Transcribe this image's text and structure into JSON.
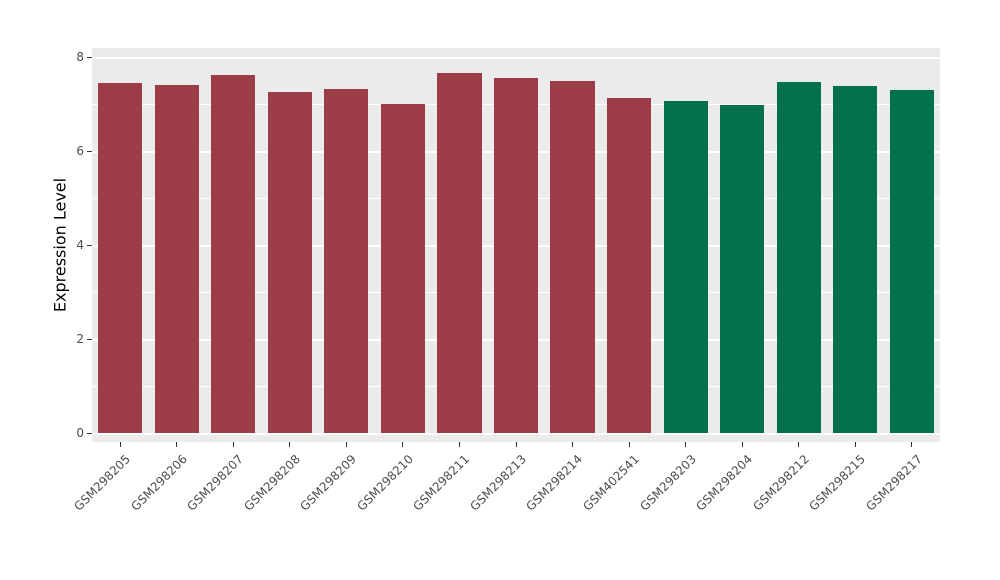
{
  "chart_data": {
    "type": "bar",
    "title": "",
    "xlabel": "",
    "ylabel": "Expression Level",
    "categories": [
      "GSM298205",
      "GSM298206",
      "GSM298207",
      "GSM298208",
      "GSM298209",
      "GSM298210",
      "GSM298211",
      "GSM298213",
      "GSM298214",
      "GSM402541",
      "GSM298203",
      "GSM298204",
      "GSM298212",
      "GSM298215",
      "GSM298217"
    ],
    "values": [
      7.45,
      7.4,
      7.62,
      7.25,
      7.32,
      7.0,
      7.65,
      7.55,
      7.5,
      7.12,
      7.07,
      6.98,
      7.47,
      7.38,
      7.3
    ],
    "bar_colors": [
      "#9D3C49",
      "#9D3C49",
      "#9D3C49",
      "#9D3C49",
      "#9D3C49",
      "#9D3C49",
      "#9D3C49",
      "#9D3C49",
      "#9D3C49",
      "#9D3C49",
      "#03714B",
      "#03714B",
      "#03714B",
      "#03714B",
      "#03714B"
    ],
    "group_colors": {
      "group1": "#9D3C49",
      "group2": "#03714B"
    },
    "ylim": [
      0,
      8
    ],
    "yticks": [
      0,
      2,
      4,
      6,
      8
    ],
    "minor_gridlines": [
      1,
      3,
      5,
      7
    ],
    "grid": true,
    "legend": "none",
    "panel_background": "#EBEBEB",
    "gridline_color": "#FFFFFF"
  }
}
